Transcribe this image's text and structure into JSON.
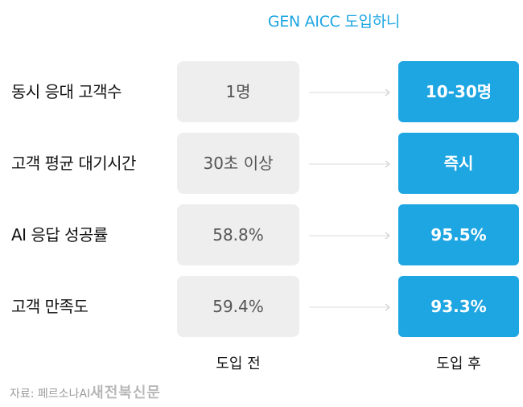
{
  "chart_data": {
    "type": "table",
    "title": "GEN AICC 도입하니",
    "columns": [
      "도입 전",
      "도입 후"
    ],
    "rows": [
      {
        "label": "동시 응대 고객수",
        "before": "1명",
        "after": "10-30명"
      },
      {
        "label": "고객 평균 대기시간",
        "before": "30초 이상",
        "after": "즉시"
      },
      {
        "label": "AI 응답 성공률",
        "before": "58.8%",
        "after": "95.5%"
      },
      {
        "label": "고객 만족도",
        "before": "59.4%",
        "after": "93.3%"
      }
    ],
    "colors": {
      "accent": "#1ea6e2",
      "before_bg": "#eeeeef"
    }
  },
  "source": {
    "text": "자료: 페르소나AI",
    "watermark": "새전북신문"
  }
}
